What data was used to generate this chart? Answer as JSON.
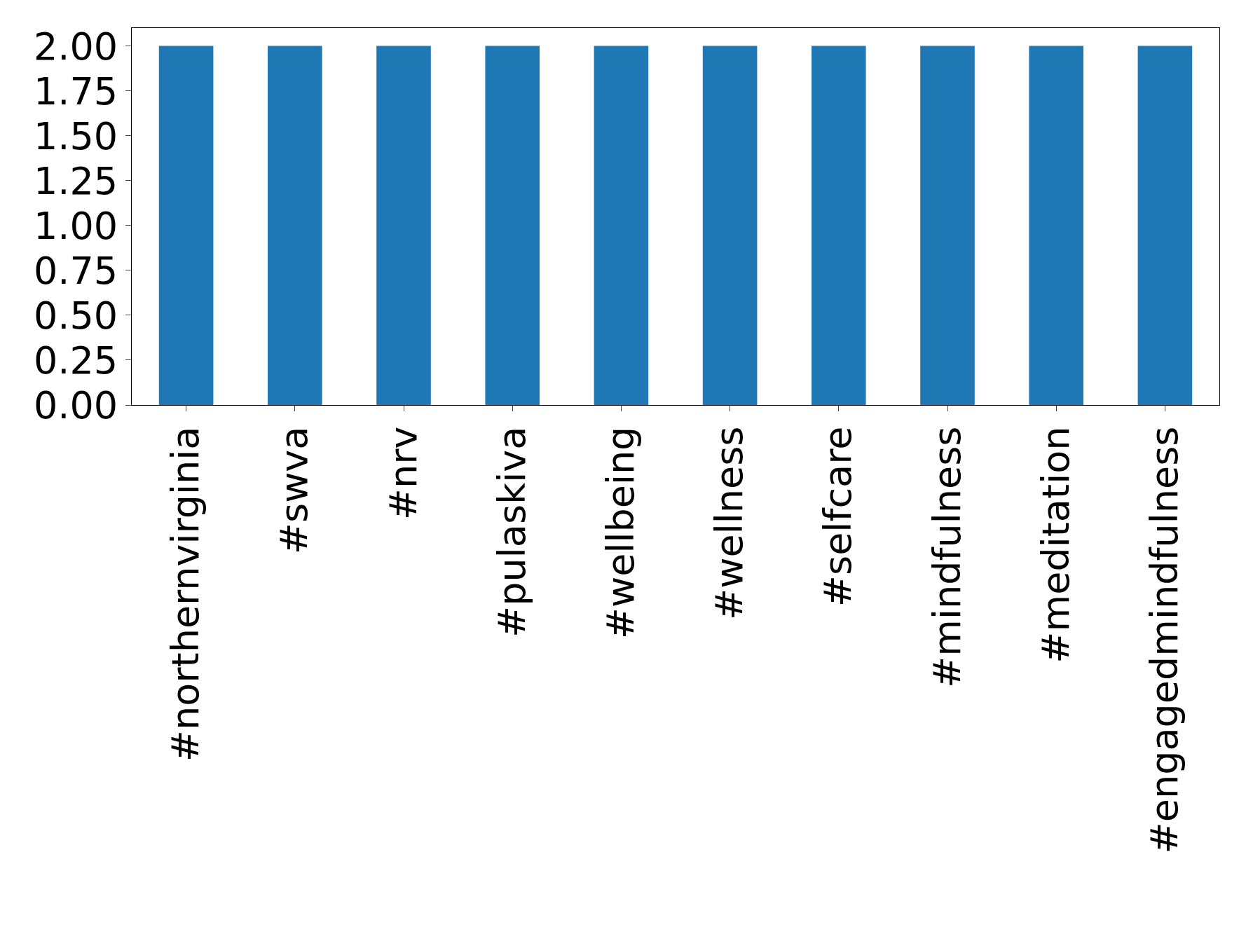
{
  "chart_data": {
    "type": "bar",
    "categories": [
      "#northernvirginia",
      "#swva",
      "#nrv",
      "#pulaskiva",
      "#wellbeing",
      "#wellness",
      "#selfcare",
      "#mindfulness",
      "#meditation",
      "#engagedmindfulness"
    ],
    "values": [
      2,
      2,
      2,
      2,
      2,
      2,
      2,
      2,
      2,
      2
    ],
    "color": "#1f77b4",
    "ylim": [
      0,
      2.1
    ],
    "yticks": [
      {
        "value": 0,
        "label": "0.00"
      },
      {
        "value": 0.25,
        "label": "0.25"
      },
      {
        "value": 0.5,
        "label": "0.50"
      },
      {
        "value": 0.75,
        "label": "0.75"
      },
      {
        "value": 1,
        "label": "1.00"
      },
      {
        "value": 1.25,
        "label": "1.25"
      },
      {
        "value": 1.5,
        "label": "1.50"
      },
      {
        "value": 1.75,
        "label": "1.75"
      },
      {
        "value": 2,
        "label": "2.00"
      }
    ],
    "legend": false
  }
}
